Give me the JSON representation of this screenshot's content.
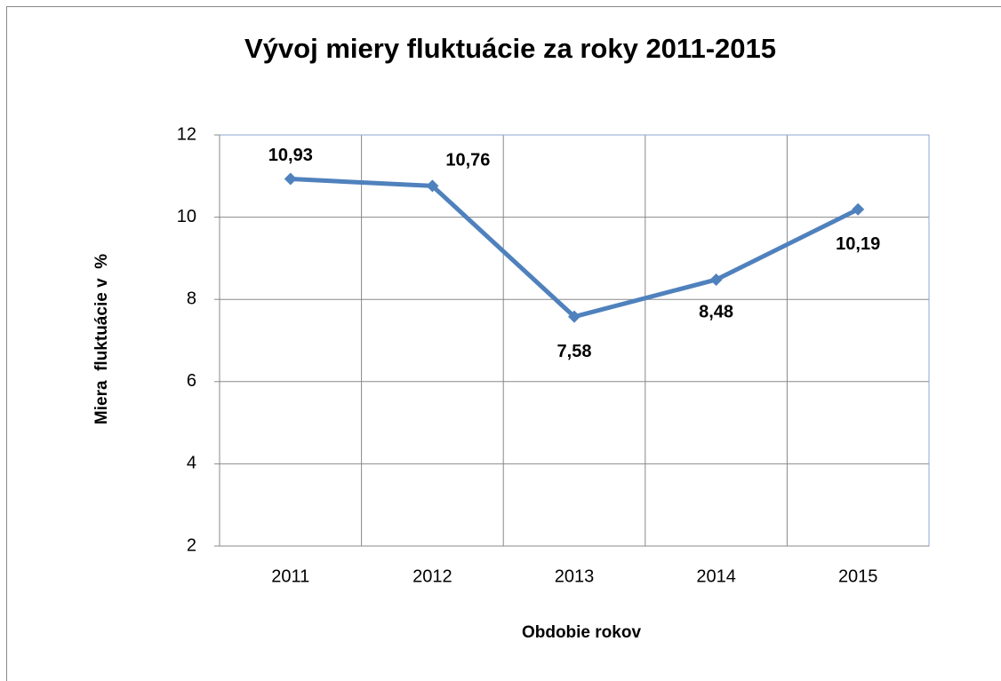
{
  "chart_data": {
    "type": "line",
    "title": "Vývoj miery fluktuácie za roky 2011-2015",
    "x_label": "Obdobie rokov",
    "y_label": "Miera  fluktuácie v  %",
    "categories": [
      "2011",
      "2012",
      "2013",
      "2014",
      "2015"
    ],
    "series": [
      {
        "name": "Miera fluktuácie",
        "color": "#4f81bd",
        "values": [
          10.93,
          10.76,
          7.58,
          8.48,
          10.19
        ],
        "value_labels": [
          "10,93",
          "10,76",
          "7,58",
          "8,48",
          "10,19"
        ]
      }
    ],
    "ylim": [
      2,
      12
    ],
    "yticks": [
      2,
      4,
      6,
      8,
      10,
      12
    ],
    "grid": true
  }
}
